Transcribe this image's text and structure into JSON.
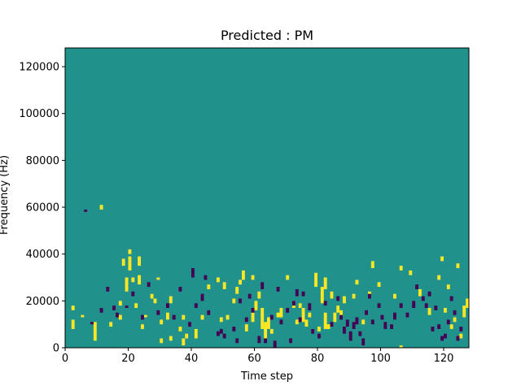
{
  "chart_data": {
    "type": "heatmap",
    "title": "Predicted : PM",
    "xlabel": "Time step",
    "ylabel": "Frequency (Hz)",
    "xlim": [
      0,
      128
    ],
    "ylim": [
      0,
      128000
    ],
    "x_ticks": [
      0,
      20,
      40,
      60,
      80,
      100,
      120
    ],
    "y_ticks": [
      0,
      20000,
      40000,
      60000,
      80000,
      100000,
      120000
    ],
    "x_tick_labels": [
      "0",
      "20",
      "40",
      "60",
      "80",
      "100",
      "120"
    ],
    "y_tick_labels": [
      "0",
      "20000",
      "40000",
      "60000",
      "80000",
      "100000",
      "120000"
    ],
    "grid": false,
    "legend": "none",
    "value_levels": {
      "low": -1,
      "background": 0,
      "high": 1
    },
    "colors": {
      "background": "#21918c",
      "high": "#fde725",
      "low": "#440154"
    },
    "cells_high": [
      [
        2,
        8,
        12
      ],
      [
        2,
        16,
        18
      ],
      [
        5,
        13,
        14
      ],
      [
        9,
        3,
        11
      ],
      [
        11,
        59,
        61
      ],
      [
        14,
        9,
        11
      ],
      [
        17,
        12,
        14
      ],
      [
        17,
        18,
        20
      ],
      [
        18,
        35,
        38
      ],
      [
        19,
        24,
        30
      ],
      [
        20,
        33,
        39
      ],
      [
        20,
        40,
        42
      ],
      [
        21,
        28,
        30
      ],
      [
        22,
        17,
        19
      ],
      [
        23,
        27,
        31
      ],
      [
        23,
        35,
        39
      ],
      [
        24,
        8,
        10
      ],
      [
        25,
        13,
        14
      ],
      [
        27,
        21,
        23
      ],
      [
        28,
        19,
        21
      ],
      [
        29,
        29,
        30
      ],
      [
        30,
        2,
        4
      ],
      [
        30,
        10,
        12
      ],
      [
        32,
        12,
        15
      ],
      [
        33,
        3,
        5
      ],
      [
        33,
        19,
        22
      ],
      [
        36,
        7,
        9
      ],
      [
        37,
        12,
        14
      ],
      [
        37,
        1,
        4
      ],
      [
        38,
        4,
        6
      ],
      [
        41,
        4,
        8
      ],
      [
        43,
        12,
        14
      ],
      [
        45,
        25,
        27
      ],
      [
        48,
        28,
        30
      ],
      [
        49,
        11,
        13
      ],
      [
        50,
        25,
        28
      ],
      [
        51,
        12,
        14
      ],
      [
        53,
        19,
        21
      ],
      [
        54,
        23,
        26
      ],
      [
        55,
        27,
        29
      ],
      [
        56,
        29,
        33
      ],
      [
        57,
        7,
        10
      ],
      [
        59,
        29,
        31
      ],
      [
        59,
        11,
        15
      ],
      [
        60,
        16,
        20
      ],
      [
        61,
        21,
        24
      ],
      [
        62,
        8,
        17
      ],
      [
        63,
        4,
        11
      ],
      [
        64,
        8,
        13
      ],
      [
        65,
        6,
        8
      ],
      [
        67,
        13,
        15
      ],
      [
        68,
        13,
        17
      ],
      [
        70,
        29,
        31
      ],
      [
        72,
        17,
        20
      ],
      [
        73,
        10,
        12
      ],
      [
        74,
        17,
        19
      ],
      [
        75,
        11,
        17
      ],
      [
        76,
        9,
        12
      ],
      [
        77,
        13,
        15
      ],
      [
        79,
        26,
        32
      ],
      [
        80,
        7,
        9
      ],
      [
        81,
        19,
        26
      ],
      [
        82,
        8,
        15
      ],
      [
        82,
        25,
        30
      ],
      [
        83,
        8,
        10
      ],
      [
        84,
        21,
        24
      ],
      [
        85,
        11,
        15
      ],
      [
        86,
        15,
        18
      ],
      [
        87,
        13,
        16
      ],
      [
        88,
        19,
        22
      ],
      [
        91,
        21,
        23
      ],
      [
        92,
        27,
        29
      ],
      [
        94,
        10,
        12
      ],
      [
        96,
        22,
        24
      ],
      [
        97,
        34,
        37
      ],
      [
        99,
        26,
        28
      ],
      [
        104,
        21,
        23
      ],
      [
        106,
        0,
        1
      ],
      [
        106,
        33,
        35
      ],
      [
        109,
        31,
        33
      ],
      [
        112,
        22,
        25
      ],
      [
        115,
        14,
        17
      ],
      [
        118,
        29,
        31
      ],
      [
        119,
        37,
        39
      ],
      [
        120,
        15,
        17
      ],
      [
        121,
        25,
        27
      ],
      [
        122,
        8,
        10
      ],
      [
        123,
        11,
        13
      ],
      [
        124,
        34,
        36
      ],
      [
        125,
        4,
        6
      ],
      [
        126,
        13,
        18
      ],
      [
        127,
        17,
        21
      ]
    ],
    "cells_low": [
      [
        6,
        58,
        59
      ],
      [
        8,
        10,
        11
      ],
      [
        11,
        15,
        17
      ],
      [
        13,
        24,
        26
      ],
      [
        15,
        16,
        18
      ],
      [
        16,
        13,
        15
      ],
      [
        19,
        17,
        18
      ],
      [
        21,
        22,
        24
      ],
      [
        24,
        12,
        14
      ],
      [
        26,
        26,
        28
      ],
      [
        29,
        14,
        16
      ],
      [
        32,
        17,
        19
      ],
      [
        34,
        12,
        14
      ],
      [
        36,
        24,
        26
      ],
      [
        39,
        9,
        11
      ],
      [
        40,
        30,
        34
      ],
      [
        41,
        17,
        19
      ],
      [
        43,
        20,
        23
      ],
      [
        44,
        29,
        31
      ],
      [
        45,
        14,
        16
      ],
      [
        48,
        5,
        7
      ],
      [
        49,
        6,
        8
      ],
      [
        50,
        4,
        6
      ],
      [
        53,
        7,
        9
      ],
      [
        54,
        2,
        4
      ],
      [
        55,
        19,
        21
      ],
      [
        57,
        11,
        13
      ],
      [
        58,
        21,
        23
      ],
      [
        59,
        15,
        17
      ],
      [
        61,
        2,
        5
      ],
      [
        62,
        25,
        28
      ],
      [
        63,
        2,
        4
      ],
      [
        65,
        12,
        14
      ],
      [
        66,
        0,
        3
      ],
      [
        67,
        24,
        26
      ],
      [
        68,
        10,
        12
      ],
      [
        70,
        15,
        17
      ],
      [
        71,
        2,
        4
      ],
      [
        72,
        18,
        20
      ],
      [
        73,
        22,
        25
      ],
      [
        74,
        11,
        13
      ],
      [
        75,
        22,
        24
      ],
      [
        77,
        16,
        19
      ],
      [
        78,
        6,
        8
      ],
      [
        80,
        4,
        6
      ],
      [
        82,
        18,
        20
      ],
      [
        84,
        9,
        11
      ],
      [
        86,
        20,
        22
      ],
      [
        87,
        12,
        14
      ],
      [
        88,
        6,
        9
      ],
      [
        89,
        9,
        12
      ],
      [
        90,
        3,
        7
      ],
      [
        91,
        8,
        11
      ],
      [
        92,
        10,
        13
      ],
      [
        93,
        5,
        7
      ],
      [
        94,
        1,
        4
      ],
      [
        95,
        14,
        16
      ],
      [
        96,
        21,
        23
      ],
      [
        97,
        10,
        12
      ],
      [
        99,
        17,
        19
      ],
      [
        100,
        12,
        14
      ],
      [
        101,
        8,
        11
      ],
      [
        103,
        8,
        10
      ],
      [
        104,
        12,
        15
      ],
      [
        106,
        17,
        19
      ],
      [
        108,
        13,
        15
      ],
      [
        110,
        17,
        20
      ],
      [
        111,
        25,
        27
      ],
      [
        113,
        20,
        22
      ],
      [
        114,
        17,
        19
      ],
      [
        115,
        22,
        24
      ],
      [
        116,
        7,
        9
      ],
      [
        117,
        16,
        18
      ],
      [
        118,
        8,
        10
      ],
      [
        119,
        3,
        5
      ],
      [
        120,
        4,
        6
      ],
      [
        121,
        10,
        12
      ],
      [
        122,
        20,
        22
      ],
      [
        123,
        14,
        16
      ],
      [
        124,
        3,
        5
      ],
      [
        125,
        7,
        9
      ]
    ]
  }
}
